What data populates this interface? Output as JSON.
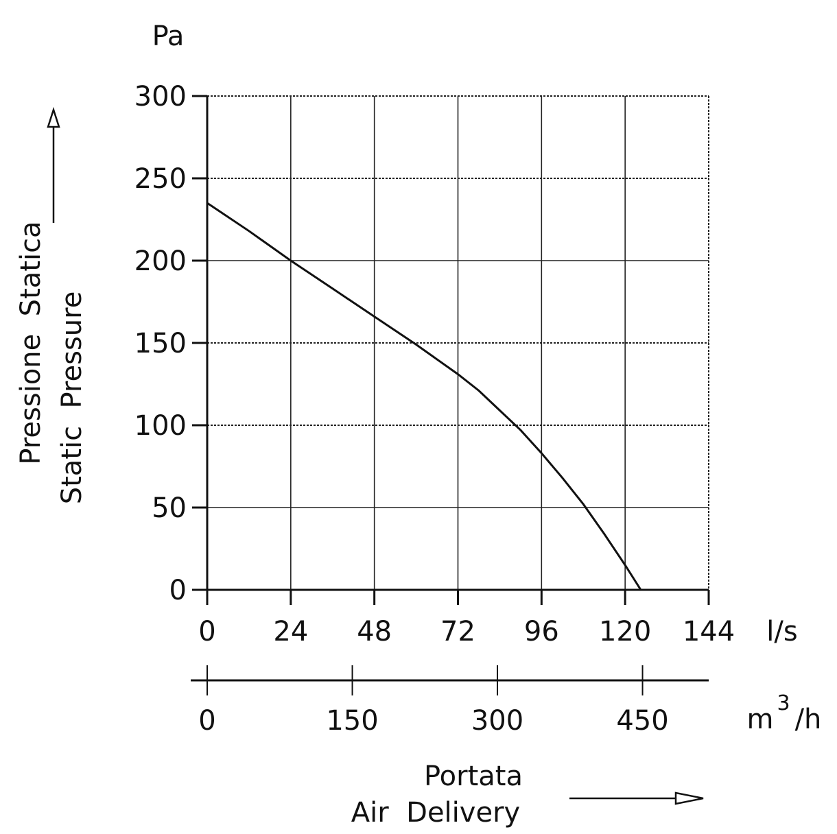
{
  "chart_data": {
    "type": "line",
    "title": "",
    "y_unit": "Pa",
    "ylabel_line1": "Pressione  Statica",
    "ylabel_line2": "Static  Pressure",
    "x_unit": "l/s",
    "x2_unit_base": "m",
    "x2_unit_exp": "3",
    "x2_unit_tail": "/h",
    "xlabel_line1": "Portata",
    "xlabel_line2": "Air  Delivery",
    "ylim": [
      0,
      300
    ],
    "xlim": [
      0,
      144
    ],
    "yticks": [
      "0",
      "50",
      "100",
      "150",
      "200",
      "250",
      "300"
    ],
    "xticks": [
      "0",
      "24",
      "48",
      "72",
      "96",
      "120",
      "144"
    ],
    "x2ticks": [
      "0",
      "150",
      "300",
      "450"
    ],
    "x2_ticks_in_ls": [
      0,
      41.67,
      83.33,
      125
    ],
    "grid": true,
    "series": [
      {
        "name": "",
        "x": [
          0,
          12,
          24,
          36,
          48,
          60,
          72,
          78,
          84,
          90,
          96,
          102,
          108,
          114,
          120,
          124.5
        ],
        "y": [
          235,
          218,
          200,
          183,
          166,
          149,
          131,
          121,
          109,
          97,
          83,
          68,
          52,
          34,
          15,
          0
        ]
      }
    ]
  }
}
